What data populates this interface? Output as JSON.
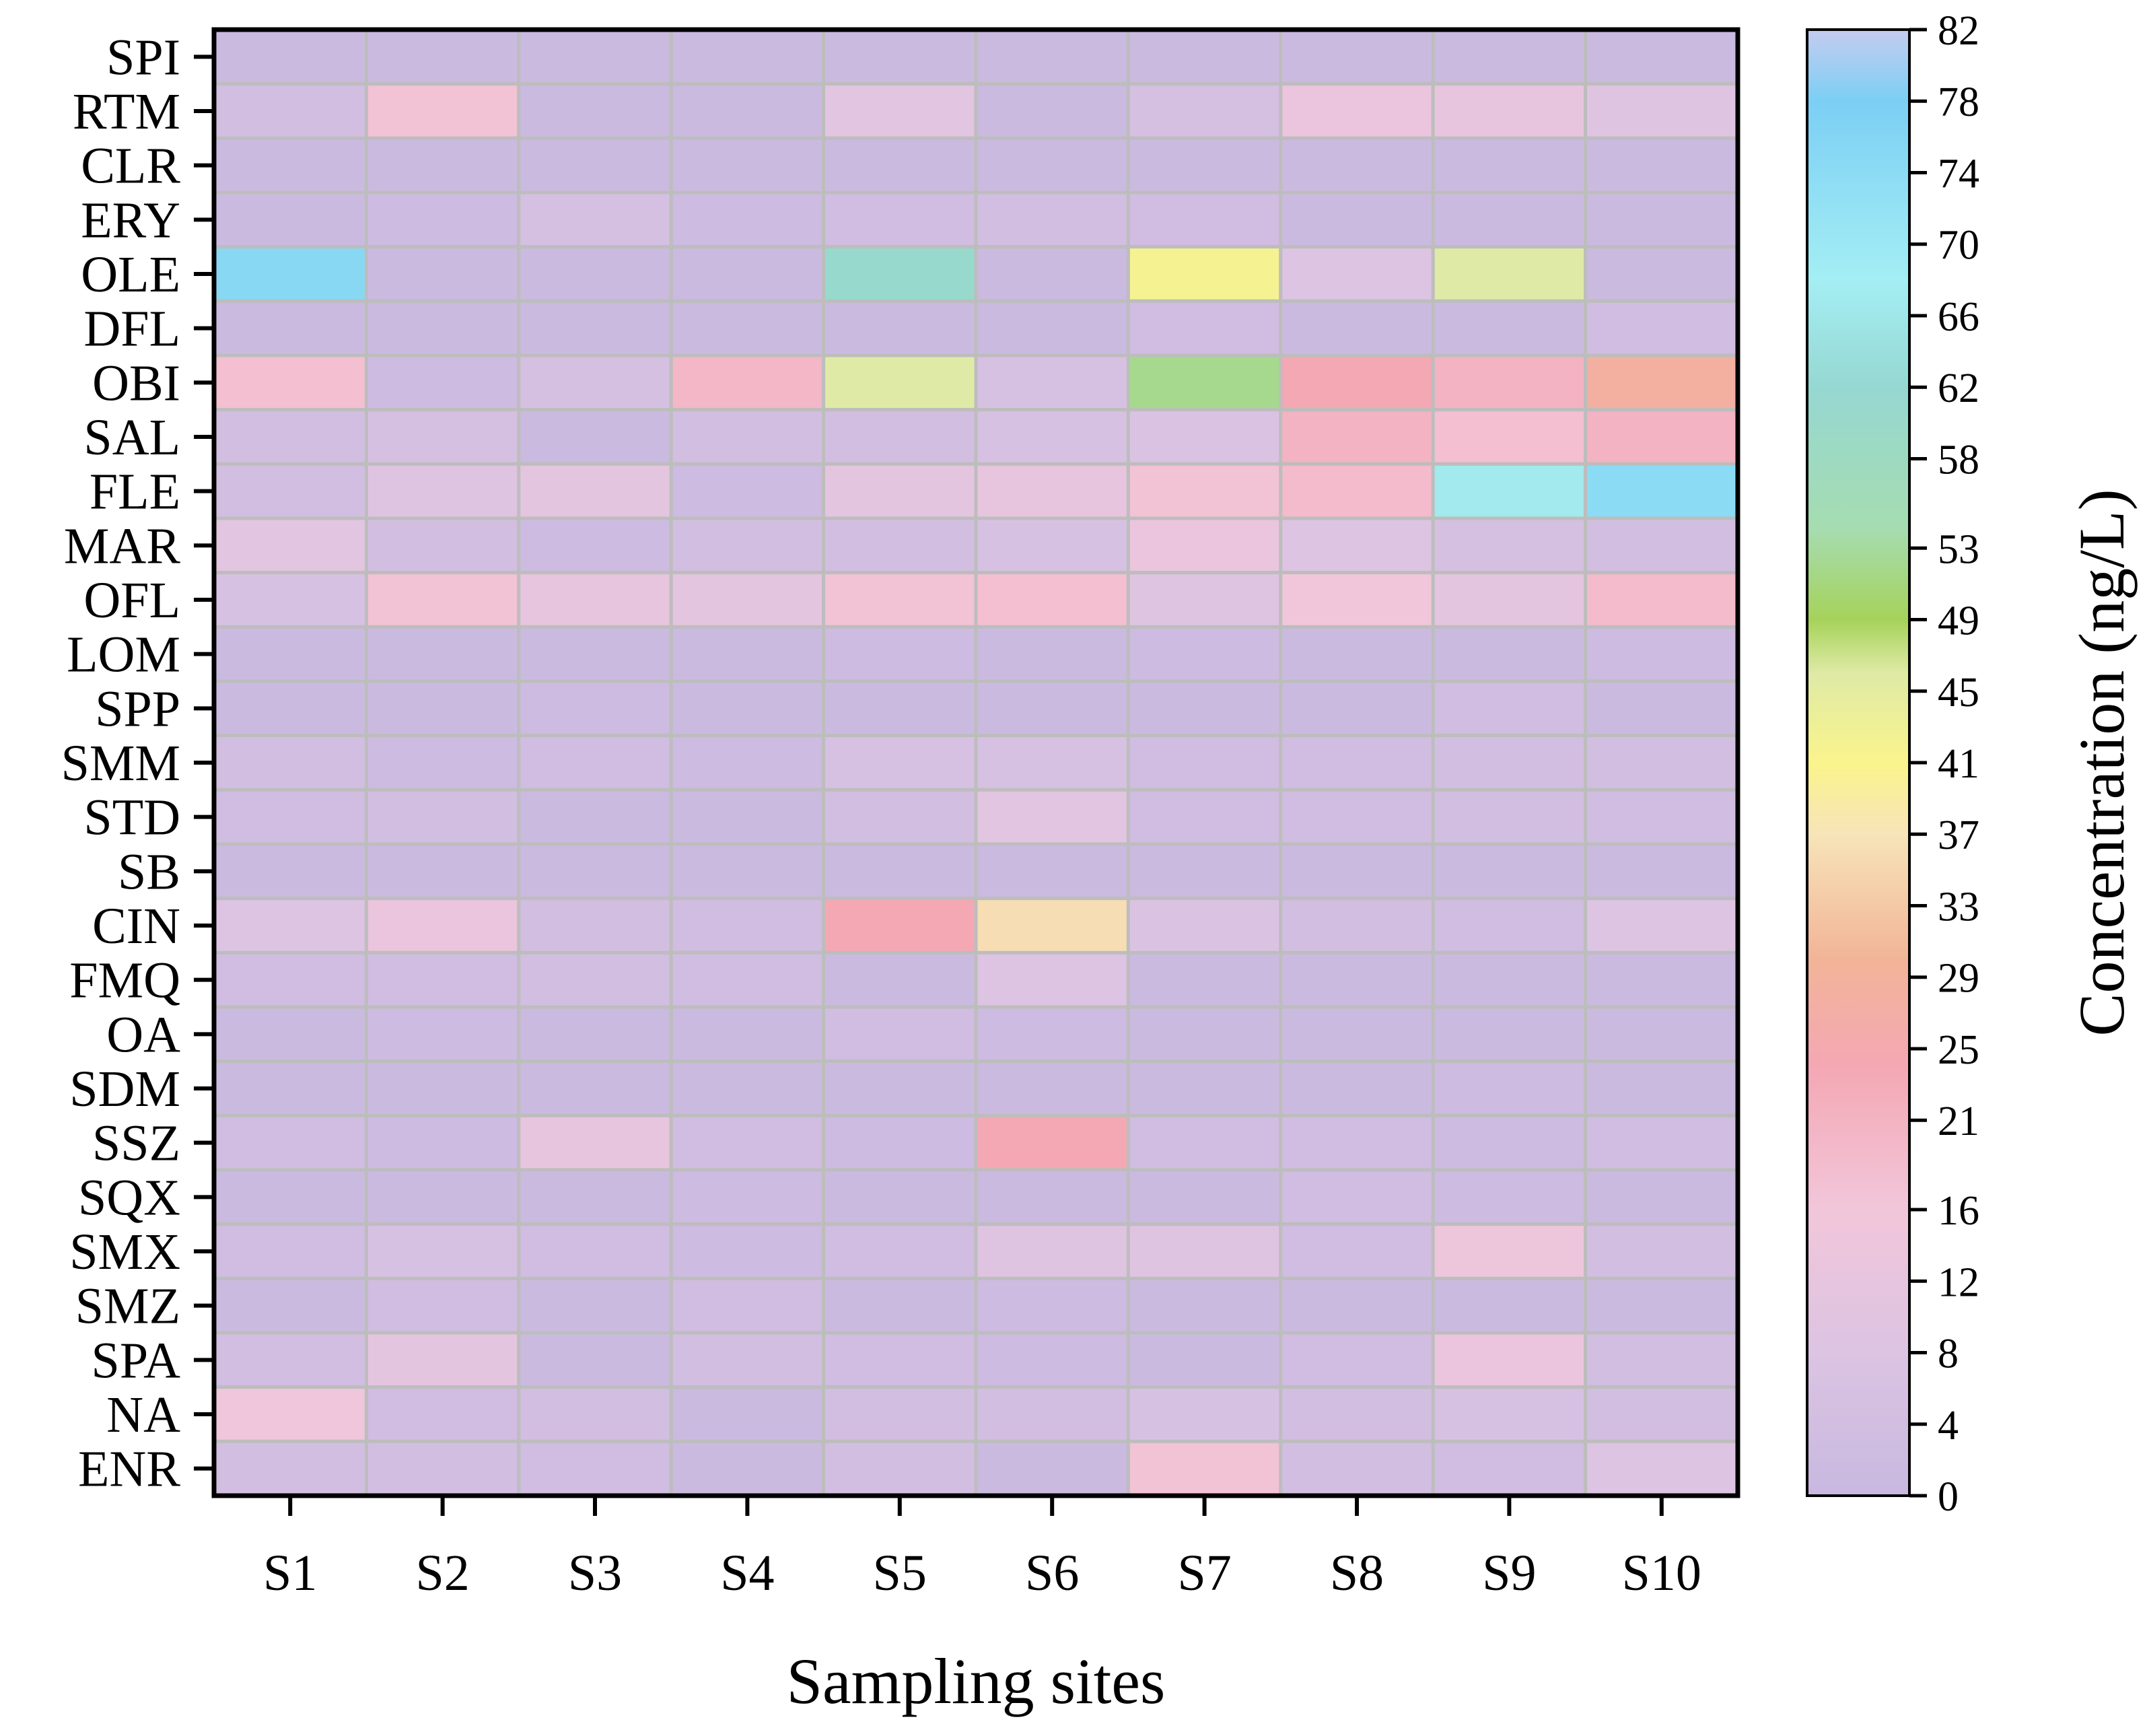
{
  "chart_data": {
    "type": "heatmap",
    "title": "",
    "xlabel": "Sampling sites",
    "ylabel": "",
    "x": [
      "S1",
      "S2",
      "S3",
      "S4",
      "S5",
      "S6",
      "S7",
      "S8",
      "S9",
      "S10"
    ],
    "y": [
      "SPI",
      "RTM",
      "CLR",
      "ERY",
      "OLE",
      "DFL",
      "OBI",
      "SAL",
      "FLE",
      "MAR",
      "OFL",
      "LOM",
      "SPP",
      "SMM",
      "STD",
      "SB",
      "CIN",
      "FMQ",
      "OA",
      "SDM",
      "SSZ",
      "SQX",
      "SMX",
      "SMZ",
      "SPA",
      "NA",
      "ENR"
    ],
    "values": [
      [
        1,
        1,
        1,
        1,
        1,
        1,
        1,
        1,
        1,
        1
      ],
      [
        4,
        17,
        1,
        1,
        10,
        1,
        5,
        13,
        12,
        9
      ],
      [
        1,
        1,
        1,
        1,
        1,
        1,
        1,
        1,
        1,
        1
      ],
      [
        1,
        2,
        5,
        2,
        3,
        4,
        3,
        1,
        1,
        1
      ],
      [
        75,
        1,
        1,
        1,
        61,
        1,
        42,
        8,
        46,
        1
      ],
      [
        1,
        1,
        1,
        1,
        1,
        1,
        3,
        1,
        1,
        3
      ],
      [
        18,
        2,
        5,
        20,
        46,
        6,
        52,
        24,
        21,
        28
      ],
      [
        4,
        5,
        1,
        4,
        4,
        6,
        7,
        21,
        18,
        21
      ],
      [
        4,
        9,
        11,
        2,
        11,
        12,
        17,
        19,
        67,
        74
      ],
      [
        10,
        4,
        2,
        4,
        4,
        6,
        13,
        8,
        5,
        4
      ],
      [
        6,
        17,
        12,
        11,
        17,
        18,
        9,
        16,
        11,
        19
      ],
      [
        1,
        1,
        1,
        1,
        2,
        1,
        2,
        1,
        1,
        2
      ],
      [
        1,
        1,
        2,
        1,
        1,
        1,
        1,
        1,
        3,
        1
      ],
      [
        4,
        2,
        3,
        2,
        6,
        6,
        3,
        3,
        4,
        4
      ],
      [
        3,
        4,
        1,
        1,
        4,
        10,
        3,
        3,
        4,
        3
      ],
      [
        1,
        1,
        1,
        1,
        1,
        1,
        1,
        1,
        1,
        1
      ],
      [
        8,
        13,
        4,
        3,
        24,
        36,
        7,
        4,
        3,
        8
      ],
      [
        3,
        3,
        4,
        3,
        1,
        8,
        1,
        1,
        1,
        1
      ],
      [
        1,
        2,
        1,
        1,
        3,
        2,
        1,
        1,
        1,
        1
      ],
      [
        1,
        1,
        1,
        1,
        1,
        1,
        1,
        1,
        2,
        1
      ],
      [
        3,
        2,
        12,
        3,
        2,
        24,
        3,
        3,
        2,
        3
      ],
      [
        1,
        1,
        1,
        2,
        1,
        1,
        1,
        3,
        2,
        1
      ],
      [
        3,
        6,
        3,
        2,
        3,
        9,
        9,
        3,
        14,
        4
      ],
      [
        1,
        3,
        1,
        3,
        1,
        2,
        1,
        1,
        1,
        1
      ],
      [
        4,
        11,
        1,
        4,
        3,
        2,
        1,
        3,
        13,
        4
      ],
      [
        15,
        3,
        4,
        1,
        4,
        4,
        6,
        4,
        6,
        4
      ],
      [
        4,
        4,
        3,
        1,
        4,
        1,
        17,
        4,
        3,
        8
      ]
    ],
    "colorbar": {
      "label": "Concentration (ng/L)",
      "min": 0,
      "max": 82,
      "ticks": [
        0,
        4,
        8,
        12,
        16,
        21,
        25,
        29,
        33,
        37,
        41,
        45,
        49,
        53,
        58,
        62,
        66,
        70,
        74,
        78,
        82
      ],
      "gradient_stops": [
        {
          "v": 0,
          "color": "#c8b8e0"
        },
        {
          "v": 8,
          "color": "#dcc4e2"
        },
        {
          "v": 16,
          "color": "#f2c6da"
        },
        {
          "v": 24,
          "color": "#f4a8b4"
        },
        {
          "v": 30,
          "color": "#f2b498"
        },
        {
          "v": 37,
          "color": "#f7e4b8"
        },
        {
          "v": 41,
          "color": "#faf48c"
        },
        {
          "v": 46,
          "color": "#dfeaa6"
        },
        {
          "v": 49,
          "color": "#a6d25a"
        },
        {
          "v": 54,
          "color": "#a6dcb0"
        },
        {
          "v": 62,
          "color": "#96d8d2"
        },
        {
          "v": 68,
          "color": "#a4eef4"
        },
        {
          "v": 78,
          "color": "#7ccff4"
        },
        {
          "v": 82,
          "color": "#c4ccf0"
        }
      ]
    },
    "cell_border_color": "#bdbdbd"
  }
}
